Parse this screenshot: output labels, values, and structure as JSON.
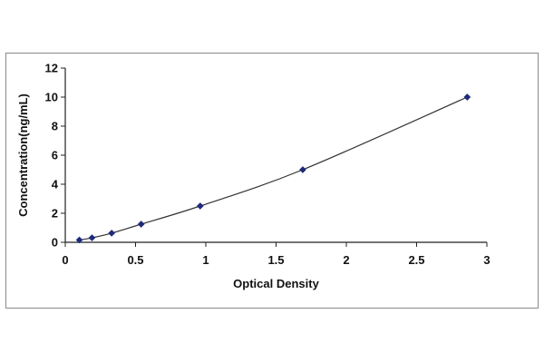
{
  "chart_data": {
    "type": "scatter",
    "title": "",
    "xlabel": "Optical Density",
    "ylabel": "Concentration(ng/mL)",
    "xlim": [
      0,
      3
    ],
    "ylim": [
      0,
      12
    ],
    "x_ticks": [
      "0",
      "0.5",
      "1",
      "1.5",
      "2",
      "2.5",
      "3"
    ],
    "y_ticks": [
      "0",
      "2",
      "4",
      "6",
      "8",
      "10",
      "12"
    ],
    "grid": false,
    "legend": "none",
    "series": [
      {
        "x": [
          0.1,
          0.19,
          0.33,
          0.54,
          0.96,
          1.69,
          2.86
        ],
        "y": [
          0.16,
          0.31,
          0.63,
          1.25,
          2.5,
          5,
          10
        ],
        "marker": "diamond",
        "color": "#1f2a7a",
        "fit_line": "smooth-curve",
        "line_color": "#333333"
      }
    ]
  }
}
